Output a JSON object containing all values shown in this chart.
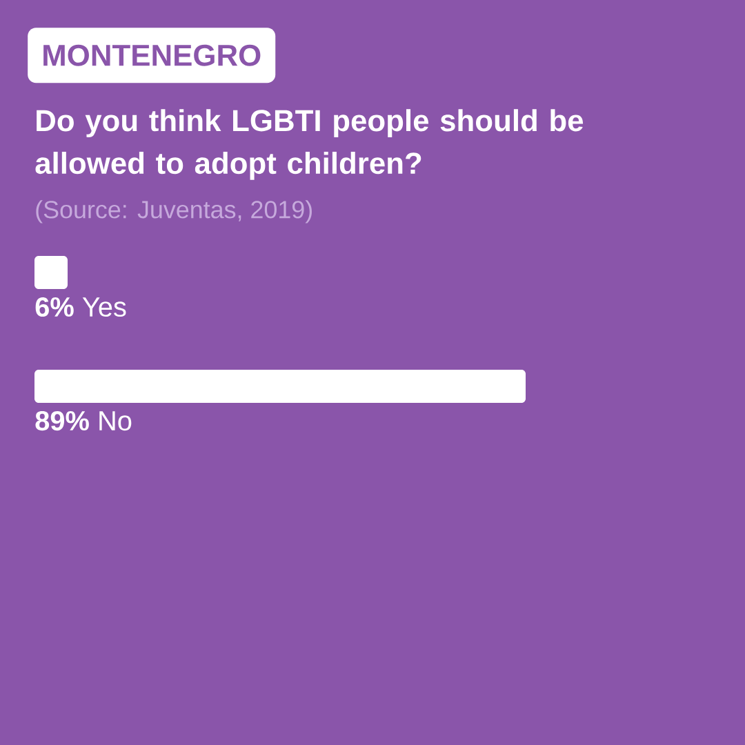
{
  "chart_data": {
    "type": "bar",
    "orientation": "horizontal",
    "subtitle": "MONTENEGRO",
    "title": "Do you think LGBTI people should be allowed to adopt children?",
    "annotations": [
      "(Source: Juventas, 2019)"
    ],
    "categories": [
      "Yes",
      "No"
    ],
    "values": [
      6,
      89
    ],
    "value_labels": [
      "6%",
      "89%"
    ],
    "color": "#ffffff"
  }
}
